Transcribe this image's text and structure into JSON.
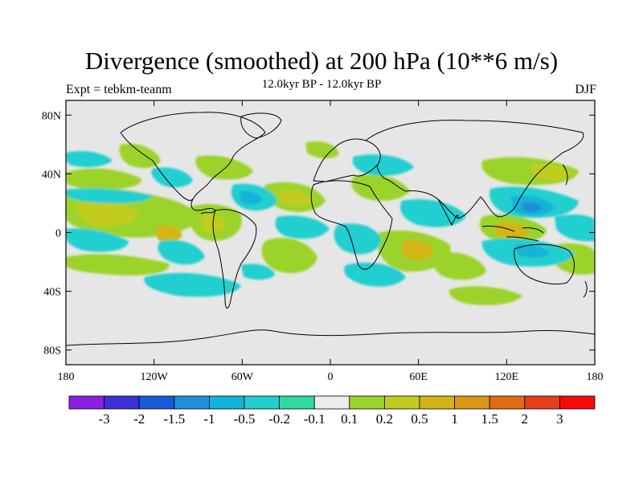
{
  "title": "Divergence (smoothed) at 200 hPa (10**6 m/s)",
  "left_label": "Expt = tebkm-teanm",
  "center_label": "12.0kyr BP - 12.0kyr BP",
  "right_label": "DJF",
  "map": {
    "projection": "cylindrical equidistant",
    "lon_range": [
      -180,
      180
    ],
    "lat_range": [
      -90,
      90
    ],
    "background_color": "#e6e6e6"
  },
  "x_ticks": [
    {
      "value": -180,
      "label": "180"
    },
    {
      "value": -120,
      "label": "120W"
    },
    {
      "value": -60,
      "label": "60W"
    },
    {
      "value": 0,
      "label": "0"
    },
    {
      "value": 60,
      "label": "60E"
    },
    {
      "value": 120,
      "label": "120E"
    },
    {
      "value": 180,
      "label": "180"
    }
  ],
  "y_ticks": [
    {
      "value": 80,
      "label": "80N"
    },
    {
      "value": 40,
      "label": "40N"
    },
    {
      "value": 0,
      "label": "0"
    },
    {
      "value": -40,
      "label": "40S"
    },
    {
      "value": -80,
      "label": "80S"
    }
  ],
  "colorbar": {
    "colors": [
      "#8b1ee0",
      "#3b2fd8",
      "#1a5cd8",
      "#1e8fd8",
      "#12b3d8",
      "#22cfd0",
      "#2fd9a0",
      "#ececec",
      "#9cd32a",
      "#c2cc1e",
      "#d4b414",
      "#d99714",
      "#e06d16",
      "#e63e1a",
      "#f50a0a"
    ],
    "labels": [
      "-3",
      "-2",
      "-1.5",
      "-1",
      "-0.5",
      "-0.2",
      "-0.1",
      "0.1",
      "0.2",
      "0.5",
      "1",
      "1.5",
      "2",
      "3"
    ]
  },
  "chart_data": {
    "type": "heatmap",
    "title": "Divergence (smoothed) at 200 hPa (10**6 m/s)",
    "subtitle": "12.0kyr BP - 12.0kyr BP",
    "left_annotation": "Expt = tebkm-teanm",
    "right_annotation": "DJF",
    "xlabel": "",
    "ylabel": "",
    "xlim": [
      -180,
      180
    ],
    "ylim": [
      -90,
      90
    ],
    "contour_levels": [
      -3,
      -2,
      -1.5,
      -1,
      -0.5,
      -0.2,
      -0.1,
      0.1,
      0.2,
      0.5,
      1,
      1.5,
      2,
      3
    ],
    "field_regions": [
      {
        "lon": [
          -180,
          -135
        ],
        "lat": [
          20,
          35
        ],
        "band": "0.2 to 0.5"
      },
      {
        "lon": [
          -180,
          -140
        ],
        "lat": [
          2,
          20
        ],
        "band": "0.2 to 1"
      },
      {
        "lon": [
          -180,
          -150
        ],
        "lat": [
          -5,
          2
        ],
        "band": "-0.5 to -0.2"
      },
      {
        "lon": [
          -165,
          -150
        ],
        "lat": [
          -10,
          0
        ],
        "band": "0.5 to 1.5"
      },
      {
        "lon": [
          -160,
          -115
        ],
        "lat": [
          -40,
          -25
        ],
        "band": "-0.5 to -0.2"
      },
      {
        "lon": [
          -130,
          -95
        ],
        "lat": [
          5,
          20
        ],
        "band": "0.2 to 1"
      },
      {
        "lon": [
          -125,
          -105
        ],
        "lat": [
          -5,
          5
        ],
        "band": "0.5 to 1"
      },
      {
        "lon": [
          -120,
          -95
        ],
        "lat": [
          30,
          45
        ],
        "band": "-0.5 to -0.2"
      },
      {
        "lon": [
          -90,
          -70
        ],
        "lat": [
          28,
          42
        ],
        "band": "0.2 to 0.5"
      },
      {
        "lon": [
          -95,
          -65
        ],
        "lat": [
          5,
          20
        ],
        "band": "-0.5 to -0.2"
      },
      {
        "lon": [
          -75,
          -45
        ],
        "lat": [
          -25,
          0
        ],
        "band": "0.2 to 0.5"
      },
      {
        "lon": [
          -40,
          -15
        ],
        "lat": [
          5,
          20
        ],
        "band": "0.2 to 1"
      },
      {
        "lon": [
          -35,
          -5
        ],
        "lat": [
          -15,
          0
        ],
        "band": "-0.5 to -0.2"
      },
      {
        "lon": [
          20,
          45
        ],
        "lat": [
          -25,
          0
        ],
        "band": "0.2 to 1"
      },
      {
        "lon": [
          45,
          80
        ],
        "lat": [
          -25,
          -10
        ],
        "band": "0.5 to 1"
      },
      {
        "lon": [
          60,
          90
        ],
        "lat": [
          0,
          15
        ],
        "band": "-0.5 to -0.2"
      },
      {
        "lon": [
          100,
          140
        ],
        "lat": [
          15,
          40
        ],
        "band": "0.2 to 0.5"
      },
      {
        "lon": [
          125,
          150
        ],
        "lat": [
          5,
          18
        ],
        "band": "-1.5 to -0.5"
      },
      {
        "lon": [
          100,
          140
        ],
        "lat": [
          -5,
          10
        ],
        "band": "0.5 to 1.5"
      },
      {
        "lon": [
          110,
          180
        ],
        "lat": [
          -30,
          -10
        ],
        "band": "-0.5 to -0.2"
      },
      {
        "lon": [
          150,
          180
        ],
        "lat": [
          20,
          40
        ],
        "band": "0.2 to 0.5"
      }
    ]
  }
}
